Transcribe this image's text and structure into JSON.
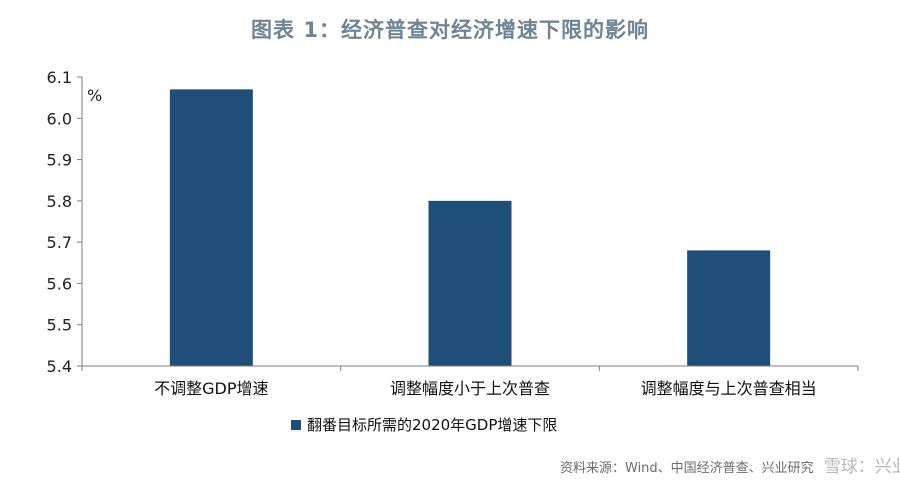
{
  "title": "图表 1：经济普查对经济增速下限的影响",
  "chart_data": {
    "type": "bar",
    "categories": [
      "不调整GDP增速",
      "调整幅度小于上次普查",
      "调整幅度与上次普查相当"
    ],
    "series": [
      {
        "name": "翻番目标所需的2020年GDP增速下限",
        "values": [
          6.07,
          5.8,
          5.68
        ]
      }
    ],
    "ylim": [
      5.4,
      6.1
    ],
    "yticks": [
      "5.4",
      "5.5",
      "5.6",
      "5.7",
      "5.8",
      "5.9",
      "6.0",
      "6.1"
    ],
    "unit": "%",
    "bar_color": "#1f4e79",
    "legend_position": "bottom",
    "grid": false
  },
  "source": "资料来源：Wind、中国经济普查、兴业研究",
  "watermark": "雪球：兴业研究"
}
